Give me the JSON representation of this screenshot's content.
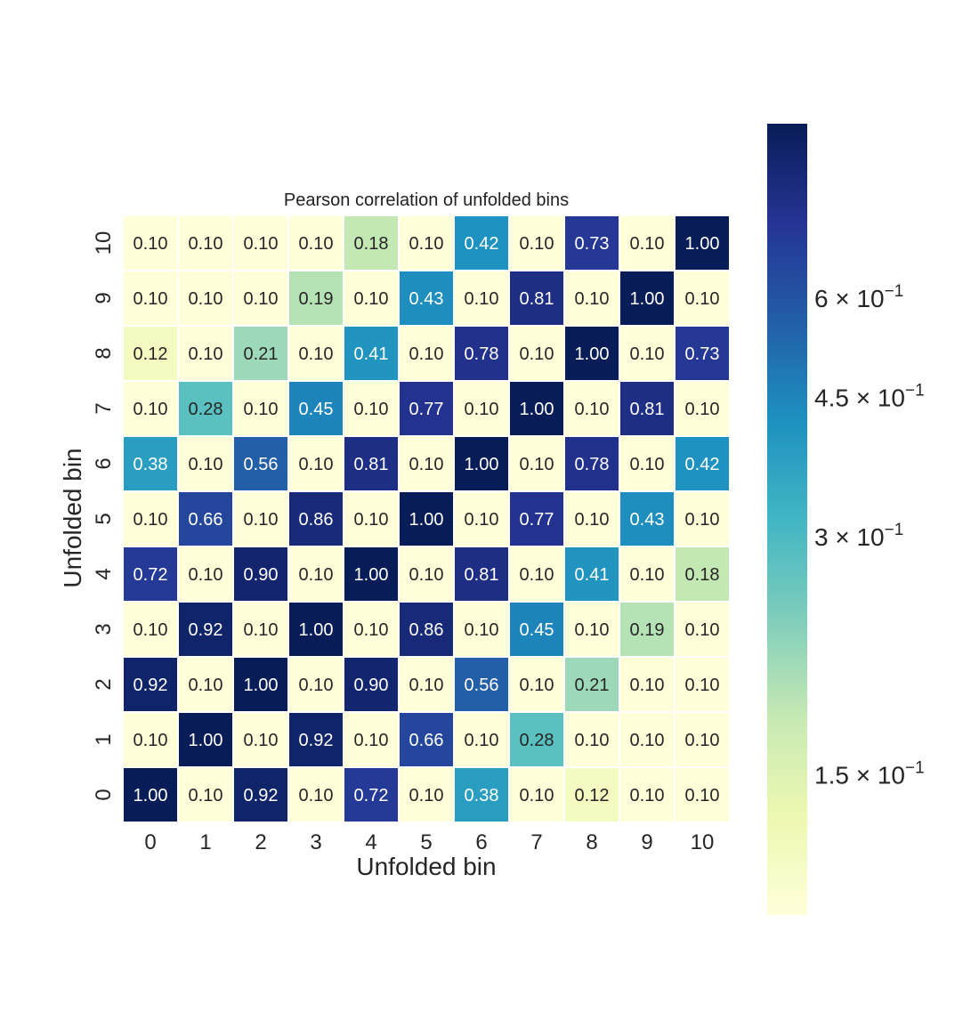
{
  "chart_data": {
    "type": "heatmap",
    "title": "Pearson correlation of unfolded bins",
    "xlabel": "Unfolded bin",
    "ylabel": "Unfolded bin",
    "x_categories": [
      "0",
      "1",
      "2",
      "3",
      "4",
      "5",
      "6",
      "7",
      "8",
      "9",
      "10"
    ],
    "y_categories": [
      "0",
      "1",
      "2",
      "3",
      "4",
      "5",
      "6",
      "7",
      "8",
      "9",
      "10"
    ],
    "y_order": "bottom-to-top",
    "colormap": "YlGnBu",
    "color_scale": "log",
    "color_range": [
      0.1,
      1.0
    ],
    "colorbar_ticks": [
      {
        "value": 0.15,
        "label_mantissa": "1.5",
        "label_exp": "−1"
      },
      {
        "value": 0.3,
        "label_mantissa": "3",
        "label_exp": "−1"
      },
      {
        "value": 0.45,
        "label_mantissa": "4.5",
        "label_exp": "−1"
      },
      {
        "value": 0.6,
        "label_mantissa": "6",
        "label_exp": "−1"
      }
    ],
    "values": [
      [
        1.0,
        0.1,
        0.92,
        0.1,
        0.72,
        0.1,
        0.38,
        0.1,
        0.12,
        0.1,
        0.1
      ],
      [
        0.1,
        1.0,
        0.1,
        0.92,
        0.1,
        0.66,
        0.1,
        0.28,
        0.1,
        0.1,
        0.1
      ],
      [
        0.92,
        0.1,
        1.0,
        0.1,
        0.9,
        0.1,
        0.56,
        0.1,
        0.21,
        0.1,
        0.1
      ],
      [
        0.1,
        0.92,
        0.1,
        1.0,
        0.1,
        0.86,
        0.1,
        0.45,
        0.1,
        0.19,
        0.1
      ],
      [
        0.72,
        0.1,
        0.9,
        0.1,
        1.0,
        0.1,
        0.81,
        0.1,
        0.41,
        0.1,
        0.18
      ],
      [
        0.1,
        0.66,
        0.1,
        0.86,
        0.1,
        1.0,
        0.1,
        0.77,
        0.1,
        0.43,
        0.1
      ],
      [
        0.38,
        0.1,
        0.56,
        0.1,
        0.81,
        0.1,
        1.0,
        0.1,
        0.78,
        0.1,
        0.42
      ],
      [
        0.1,
        0.28,
        0.1,
        0.45,
        0.1,
        0.77,
        0.1,
        1.0,
        0.1,
        0.81,
        0.1
      ],
      [
        0.12,
        0.1,
        0.21,
        0.1,
        0.41,
        0.1,
        0.78,
        0.1,
        1.0,
        0.1,
        0.73
      ],
      [
        0.1,
        0.1,
        0.1,
        0.19,
        0.1,
        0.43,
        0.1,
        0.81,
        0.1,
        1.0,
        0.1
      ],
      [
        0.1,
        0.1,
        0.1,
        0.1,
        0.18,
        0.1,
        0.42,
        0.1,
        0.73,
        0.1,
        1.0
      ]
    ],
    "value_format": "2 decimals"
  }
}
